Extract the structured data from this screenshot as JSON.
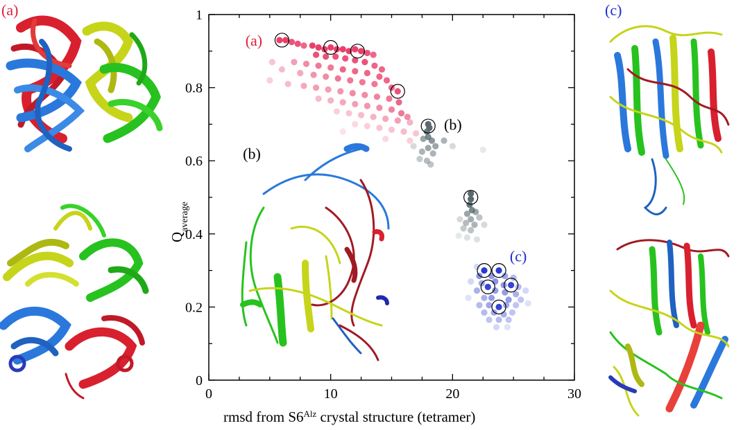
{
  "panel_labels": {
    "a_top_left": "(a)",
    "c_top_right": "(c)"
  },
  "colors": {
    "red": "#e0203a",
    "blue": "#2a73d8",
    "green": "#27c21f",
    "yellow": "#c8d61a",
    "pink": "#e8406a",
    "gray": "#5a6a70",
    "navy": "#2a3ad0",
    "label_red": "#e0203a",
    "label_blue": "#1b2bd0"
  },
  "chart_data": {
    "type": "scatter",
    "xlabel_prefix": "rmsd from S6",
    "xlabel_sup": "Alz",
    "xlabel_suffix": " crystal structure (tetramer)",
    "ylabel_main": "Q",
    "ylabel_sub": "average",
    "xlim": [
      0,
      30
    ],
    "ylim": [
      0,
      1
    ],
    "xticks": [
      0,
      10,
      20,
      30
    ],
    "yticks": [
      0,
      0.2,
      0.4,
      0.6,
      0.8,
      1
    ],
    "ytick_labels": [
      "0",
      "0.2",
      "0.4",
      "0.6",
      "0.8",
      "1"
    ],
    "annotations": [
      {
        "text": "(a)",
        "x": 3.0,
        "y": 0.915,
        "color": "#e0203a"
      },
      {
        "text": "(b)",
        "x": 19.3,
        "y": 0.685,
        "color": "#000000"
      },
      {
        "text": "(b)",
        "x": 2.8,
        "y": 0.605,
        "color": "#000000"
      },
      {
        "text": "(c)",
        "x": 24.7,
        "y": 0.325,
        "color": "#1b2bd0"
      }
    ],
    "circled_points": [
      {
        "x": 6.0,
        "y": 0.93
      },
      {
        "x": 10.0,
        "y": 0.91
      },
      {
        "x": 12.2,
        "y": 0.9
      },
      {
        "x": 15.5,
        "y": 0.79
      },
      {
        "x": 18.0,
        "y": 0.695
      },
      {
        "x": 21.5,
        "y": 0.5
      },
      {
        "x": 22.6,
        "y": 0.3
      },
      {
        "x": 23.8,
        "y": 0.3
      },
      {
        "x": 22.9,
        "y": 0.255
      },
      {
        "x": 24.8,
        "y": 0.26
      },
      {
        "x": 23.8,
        "y": 0.2
      }
    ],
    "clusters": [
      {
        "cluster": "a",
        "color": "#e8406a",
        "points": [
          [
            5.8,
            0.93,
            1
          ],
          [
            6.3,
            0.93,
            1
          ],
          [
            6.8,
            0.925,
            0.9
          ],
          [
            7.3,
            0.92,
            0.9
          ],
          [
            7.8,
            0.915,
            0.8
          ],
          [
            8.5,
            0.915,
            1
          ],
          [
            9.0,
            0.91,
            1
          ],
          [
            9.5,
            0.905,
            1
          ],
          [
            10.0,
            0.91,
            1
          ],
          [
            10.5,
            0.905,
            1
          ],
          [
            11.0,
            0.905,
            1
          ],
          [
            11.5,
            0.9,
            1
          ],
          [
            12.0,
            0.905,
            1
          ],
          [
            12.5,
            0.9,
            1
          ],
          [
            13.0,
            0.895,
            0.9
          ],
          [
            13.5,
            0.89,
            0.8
          ],
          [
            8.8,
            0.89,
            0.9
          ],
          [
            9.6,
            0.885,
            0.9
          ],
          [
            10.4,
            0.885,
            0.9
          ],
          [
            11.2,
            0.88,
            0.9
          ],
          [
            12.0,
            0.875,
            0.9
          ],
          [
            12.8,
            0.87,
            0.9
          ],
          [
            13.6,
            0.86,
            0.8
          ],
          [
            14.2,
            0.85,
            0.8
          ],
          [
            9.0,
            0.86,
            0.7
          ],
          [
            10.0,
            0.855,
            0.7
          ],
          [
            11.0,
            0.85,
            0.8
          ],
          [
            12.0,
            0.845,
            0.8
          ],
          [
            13.0,
            0.84,
            0.8
          ],
          [
            14.0,
            0.83,
            0.8
          ],
          [
            14.6,
            0.82,
            0.8
          ],
          [
            7.0,
            0.87,
            0.5
          ],
          [
            8.0,
            0.865,
            0.6
          ],
          [
            7.5,
            0.84,
            0.45
          ],
          [
            8.6,
            0.835,
            0.55
          ],
          [
            9.6,
            0.83,
            0.6
          ],
          [
            10.6,
            0.825,
            0.7
          ],
          [
            11.6,
            0.82,
            0.7
          ],
          [
            12.6,
            0.815,
            0.7
          ],
          [
            13.6,
            0.81,
            0.7
          ],
          [
            15.0,
            0.8,
            0.8
          ],
          [
            15.5,
            0.79,
            0.9
          ],
          [
            6.0,
            0.85,
            0.35
          ],
          [
            5.2,
            0.87,
            0.3
          ],
          [
            5.0,
            0.82,
            0.25
          ],
          [
            6.5,
            0.81,
            0.35
          ],
          [
            7.8,
            0.805,
            0.45
          ],
          [
            8.8,
            0.8,
            0.5
          ],
          [
            9.8,
            0.795,
            0.5
          ],
          [
            10.8,
            0.79,
            0.55
          ],
          [
            11.8,
            0.785,
            0.6
          ],
          [
            12.8,
            0.78,
            0.6
          ],
          [
            13.8,
            0.775,
            0.65
          ],
          [
            14.8,
            0.77,
            0.7
          ],
          [
            15.6,
            0.76,
            0.8
          ],
          [
            9.0,
            0.77,
            0.35
          ],
          [
            10.0,
            0.765,
            0.4
          ],
          [
            11.0,
            0.76,
            0.45
          ],
          [
            12.0,
            0.755,
            0.5
          ],
          [
            13.0,
            0.75,
            0.55
          ],
          [
            14.0,
            0.745,
            0.6
          ],
          [
            15.0,
            0.74,
            0.65
          ],
          [
            15.8,
            0.73,
            0.7
          ],
          [
            16.3,
            0.72,
            0.6
          ],
          [
            10.5,
            0.735,
            0.25
          ],
          [
            11.5,
            0.73,
            0.3
          ],
          [
            12.5,
            0.725,
            0.35
          ],
          [
            13.5,
            0.72,
            0.4
          ],
          [
            14.5,
            0.715,
            0.45
          ],
          [
            15.5,
            0.71,
            0.5
          ],
          [
            16.5,
            0.705,
            0.4
          ],
          [
            12.0,
            0.7,
            0.2
          ],
          [
            13.0,
            0.695,
            0.25
          ],
          [
            14.0,
            0.69,
            0.3
          ],
          [
            15.0,
            0.685,
            0.3
          ],
          [
            16.0,
            0.68,
            0.35
          ],
          [
            17.0,
            0.675,
            0.3
          ],
          [
            11.0,
            0.68,
            0.15
          ],
          [
            14.5,
            0.66,
            0.2
          ],
          [
            16.5,
            0.655,
            0.25
          ]
        ]
      },
      {
        "cluster": "b",
        "color": "#5a6a70",
        "points": [
          [
            18.0,
            0.7,
            1
          ],
          [
            18.1,
            0.69,
            1
          ],
          [
            17.9,
            0.68,
            0.9
          ],
          [
            18.0,
            0.665,
            0.8
          ],
          [
            18.3,
            0.655,
            0.7
          ],
          [
            17.6,
            0.66,
            0.6
          ],
          [
            18.6,
            0.64,
            0.6
          ],
          [
            18.0,
            0.635,
            0.6
          ],
          [
            17.5,
            0.625,
            0.5
          ],
          [
            18.4,
            0.62,
            0.5
          ],
          [
            17.9,
            0.6,
            0.45
          ],
          [
            18.2,
            0.59,
            0.4
          ],
          [
            17.3,
            0.605,
            0.35
          ],
          [
            19.3,
            0.655,
            0.5
          ],
          [
            20.0,
            0.64,
            0.25
          ],
          [
            16.8,
            0.64,
            0.25
          ],
          [
            22.5,
            0.63,
            0.15
          ],
          [
            21.5,
            0.51,
            1
          ],
          [
            21.5,
            0.495,
            1
          ],
          [
            21.4,
            0.48,
            0.9
          ],
          [
            21.6,
            0.465,
            0.8
          ],
          [
            21.9,
            0.46,
            0.6
          ],
          [
            21.2,
            0.455,
            0.6
          ],
          [
            21.5,
            0.44,
            0.55
          ],
          [
            21.8,
            0.425,
            0.5
          ],
          [
            21.1,
            0.43,
            0.45
          ],
          [
            20.9,
            0.415,
            0.35
          ],
          [
            21.5,
            0.41,
            0.4
          ],
          [
            22.2,
            0.445,
            0.4
          ],
          [
            20.6,
            0.44,
            0.25
          ],
          [
            22.6,
            0.425,
            0.25
          ],
          [
            21.2,
            0.39,
            0.2
          ],
          [
            22.0,
            0.385,
            0.2
          ],
          [
            20.5,
            0.395,
            0.15
          ]
        ]
      },
      {
        "cluster": "c",
        "color": "#2a3ad0",
        "points": [
          [
            22.6,
            0.3,
            1
          ],
          [
            23.8,
            0.3,
            1
          ],
          [
            22.9,
            0.255,
            0.95
          ],
          [
            24.8,
            0.26,
            0.95
          ],
          [
            23.8,
            0.2,
            0.95
          ],
          [
            22.2,
            0.285,
            0.55
          ],
          [
            23.2,
            0.285,
            0.5
          ],
          [
            24.3,
            0.285,
            0.45
          ],
          [
            25.0,
            0.28,
            0.35
          ],
          [
            22.4,
            0.265,
            0.45
          ],
          [
            23.5,
            0.27,
            0.55
          ],
          [
            24.2,
            0.26,
            0.5
          ],
          [
            25.4,
            0.255,
            0.35
          ],
          [
            22.0,
            0.245,
            0.4
          ],
          [
            23.5,
            0.245,
            0.5
          ],
          [
            24.3,
            0.24,
            0.5
          ],
          [
            25.2,
            0.235,
            0.4
          ],
          [
            22.6,
            0.225,
            0.4
          ],
          [
            23.2,
            0.225,
            0.5
          ],
          [
            24.6,
            0.22,
            0.5
          ],
          [
            25.6,
            0.22,
            0.3
          ],
          [
            22.2,
            0.205,
            0.35
          ],
          [
            23.0,
            0.205,
            0.45
          ],
          [
            24.4,
            0.205,
            0.45
          ],
          [
            25.2,
            0.205,
            0.3
          ],
          [
            22.6,
            0.185,
            0.35
          ],
          [
            23.4,
            0.185,
            0.45
          ],
          [
            24.2,
            0.18,
            0.4
          ],
          [
            24.9,
            0.185,
            0.3
          ],
          [
            23.0,
            0.165,
            0.3
          ],
          [
            23.8,
            0.165,
            0.35
          ],
          [
            24.6,
            0.165,
            0.3
          ],
          [
            22.0,
            0.31,
            0.2
          ],
          [
            21.5,
            0.27,
            0.2
          ],
          [
            21.3,
            0.225,
            0.15
          ],
          [
            26.0,
            0.245,
            0.2
          ],
          [
            23.6,
            0.145,
            0.2
          ],
          [
            24.5,
            0.145,
            0.15
          ],
          [
            26.2,
            0.21,
            0.15
          ]
        ]
      }
    ]
  },
  "molecules": [
    {
      "id": "top-left-helix-bundle",
      "panel": "a"
    },
    {
      "id": "bottom-left-tetramer",
      "panel": "a"
    },
    {
      "id": "inset-unfolded",
      "panel": "b"
    },
    {
      "id": "top-right-sandwich",
      "panel": "c"
    },
    {
      "id": "bottom-right-sandwich",
      "panel": "c"
    }
  ]
}
